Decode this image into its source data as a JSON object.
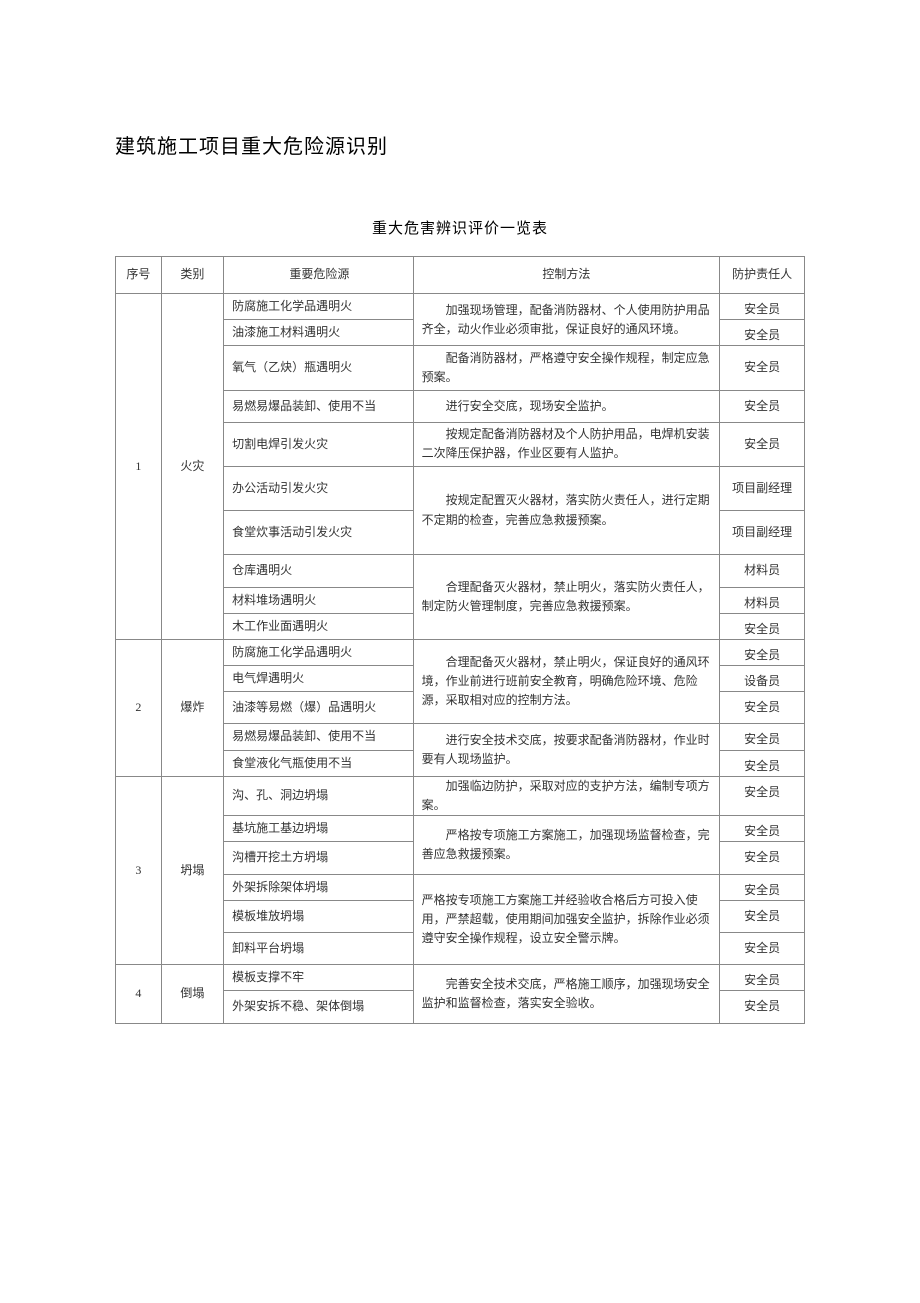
{
  "title": "建筑施工项目重大危险源识别",
  "subtitle": "重大危害辨识评价一览表",
  "header": {
    "seq": "序号",
    "category": "类别",
    "source": "重要危险源",
    "control": "控制方法",
    "responsible": "防护责任人"
  },
  "rows": {
    "r1": {
      "seq": "1",
      "cat": "火灾",
      "s1": "防腐施工化学品遇明火",
      "s2": "油漆施工材料遇明火",
      "s3": "氧气（乙炔）瓶遇明火",
      "s4": "易燃易爆品装卸、使用不当",
      "s5": "切割电焊引发火灾",
      "s6": "办公活动引发火灾",
      "s7": "食堂炊事活动引发火灾",
      "s8": "仓库遇明火",
      "s9": "材料堆场遇明火",
      "s10": "木工作业面遇明火",
      "c1": "加强现场管理，配备消防器材、个人使用防护用品齐全，动火作业必须审批，保证良好的通风环境。",
      "c2": "配备消防器材，严格遵守安全操作规程，制定应急预案。",
      "c3": "进行安全交底，现场安全监护。",
      "c4": "按规定配备消防器材及个人防护用品，电焊机安装二次降压保护器，作业区要有人监护。",
      "c5": "按规定配置灭火器材，落实防火责任人，进行定期不定期的检查，完善应急救援预案。",
      "c6": "合理配备灭火器材，禁止明火，落实防火责任人，制定防火管理制度，完善应急救援预案。",
      "p1": "安全员",
      "p2": "安全员",
      "p3": "安全员",
      "p4": "安全员",
      "p5": "安全员",
      "p6": "项目副经理",
      "p7": "项目副经理",
      "p8": "材料员",
      "p9": "材料员",
      "p10": "安全员"
    },
    "r2": {
      "seq": "2",
      "cat": "爆炸",
      "s1": "防腐施工化学品遇明火",
      "s2": "电气焊遇明火",
      "s3": "油漆等易燃（爆）品遇明火",
      "s4": "易燃易爆品装卸、使用不当",
      "s5": "食堂液化气瓶使用不当",
      "c1": "合理配备灭火器材，禁止明火，保证良好的通风环境，作业前进行班前安全教育，明确危险环境、危险源，采取相对应的控制方法。",
      "c2": "进行安全技术交底，按要求配备消防器材，作业时要有人现场监护。",
      "p1": "安全员",
      "p2": "设备员",
      "p3": "安全员",
      "p4": "安全员",
      "p5": "安全员"
    },
    "r3": {
      "seq": "3",
      "cat": "坍塌",
      "s1": "沟、孔、洞边坍塌",
      "s2": "基坑施工基边坍塌",
      "s3": "沟槽开挖土方坍塌",
      "s4": "外架拆除架体坍塌",
      "s5": "模板堆放坍塌",
      "s6": "卸料平台坍塌",
      "c1": "加强临边防护，采取对应的支护方法，编制专项方案。",
      "c2": "严格按专项施工方案施工，加强现场监督检查，完善应急救援预案。",
      "c3": "严格按专项施工方案施工并经验收合格后方可投入使用，严禁超载，使用期间加强安全监护，拆除作业必须遵守安全操作规程，设立安全警示牌。",
      "p1": "安全员",
      "p2": "安全员",
      "p3": "安全员",
      "p4": "安全员",
      "p5": "安全员",
      "p6": "安全员"
    },
    "r4": {
      "seq": "4",
      "cat": "倒塌",
      "s1": "模板支撑不牢",
      "s2": "外架安拆不稳、架体倒塌",
      "c1": "完善安全技术交底，严格施工顺序，加强现场安全监护和监督检查，落实安全验收。",
      "p1": "安全员",
      "p2": "安全员"
    }
  }
}
